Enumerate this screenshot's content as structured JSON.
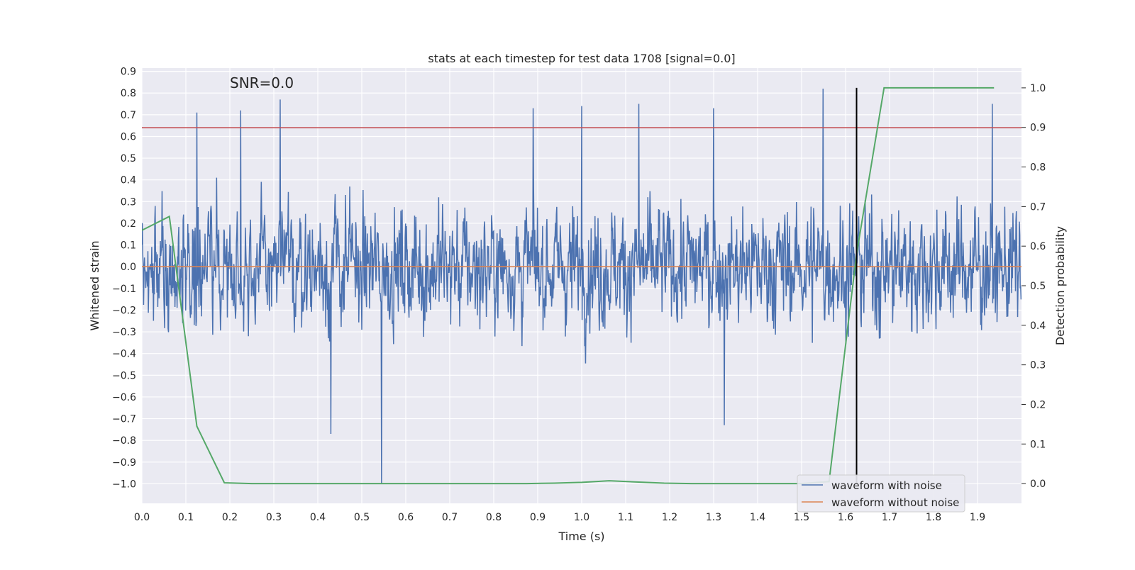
{
  "chart_data": {
    "type": "line",
    "title": "stats at each timestep for test data 1708 [signal=0.0]",
    "xlabel": "Time (s)",
    "ylabel": "Whitened strain",
    "y2label": "Detection probability",
    "annotation": "SNR=0.0",
    "xlim": [
      0.0,
      2.0
    ],
    "ylim": [
      -1.09,
      0.915
    ],
    "y2lim": [
      -0.05,
      1.05
    ],
    "xticks": [
      "0.0",
      "0.1",
      "0.2",
      "0.3",
      "0.4",
      "0.5",
      "0.6",
      "0.7",
      "0.8",
      "0.9",
      "1.0",
      "1.1",
      "1.2",
      "1.3",
      "1.4",
      "1.5",
      "1.6",
      "1.7",
      "1.8",
      "1.9"
    ],
    "yticks": [
      "0.9",
      "0.8",
      "0.7",
      "0.6",
      "0.5",
      "0.4",
      "0.3",
      "0.2",
      "0.1",
      "0.0",
      "−0.1",
      "−0.2",
      "−0.3",
      "−0.4",
      "−0.5",
      "−0.6",
      "−0.7",
      "−0.8",
      "−0.9",
      "−1.0"
    ],
    "y2ticks": [
      "1.0",
      "0.9",
      "0.8",
      "0.7",
      "0.6",
      "0.5",
      "0.4",
      "0.3",
      "0.2",
      "0.1",
      "0.0"
    ],
    "legend": [
      "waveform with noise",
      "waveform without noise"
    ],
    "legend_position": "lower-right",
    "colors": {
      "noise": "#4c72b0",
      "clean": "#dd8452",
      "probability": "#55a868",
      "threshold": "#c44e52",
      "marker": "#000000",
      "grid": "#ffffff",
      "axes_bg": "#eaeaf2"
    },
    "noise_series": {
      "name": "waveform with noise",
      "sample_count": 2048,
      "amplitude_std": 0.22,
      "peaks": [
        {
          "x": 0.125,
          "y": 0.71
        },
        {
          "x": 0.225,
          "y": 0.72
        },
        {
          "x": 0.315,
          "y": 0.77
        },
        {
          "x": 0.89,
          "y": 0.73
        },
        {
          "x": 1.0,
          "y": 0.74
        },
        {
          "x": 1.13,
          "y": 0.75
        },
        {
          "x": 1.3,
          "y": 0.73
        },
        {
          "x": 1.55,
          "y": 0.82
        },
        {
          "x": 1.935,
          "y": 0.75
        },
        {
          "x": 0.545,
          "y": -1.0
        },
        {
          "x": 0.43,
          "y": -0.77
        },
        {
          "x": 1.325,
          "y": -0.73
        }
      ]
    },
    "clean_series": {
      "name": "waveform without noise",
      "x": [
        0.0,
        2.0
      ],
      "y": [
        0.0,
        0.0
      ]
    },
    "probability_series": {
      "name": "Detection probability",
      "x": [
        0.0,
        0.0625,
        0.125,
        0.1875,
        0.25,
        0.3125,
        0.375,
        0.4375,
        0.5,
        0.5625,
        0.625,
        0.6875,
        0.75,
        0.8125,
        0.875,
        0.9375,
        1.0,
        1.0625,
        1.125,
        1.1875,
        1.25,
        1.3125,
        1.375,
        1.4375,
        1.5,
        1.5625,
        1.625,
        1.6875,
        1.75,
        1.8125,
        1.875,
        1.9375
      ],
      "y": [
        0.64,
        0.675,
        0.145,
        0.002,
        0.0,
        0.0,
        0.0,
        0.0,
        0.0,
        0.0,
        0.0,
        0.0,
        0.0,
        0.0,
        0.0,
        0.001,
        0.003,
        0.007,
        0.004,
        0.001,
        0.0,
        0.0,
        0.0,
        0.0,
        0.0,
        0.005,
        0.58,
        1.0,
        1.0,
        1.0,
        1.0,
        1.0
      ]
    },
    "threshold_line": {
      "y": 0.64
    },
    "detection_marker": {
      "x": 1.625,
      "y_from": 0.0,
      "y_to": 1.0
    }
  }
}
